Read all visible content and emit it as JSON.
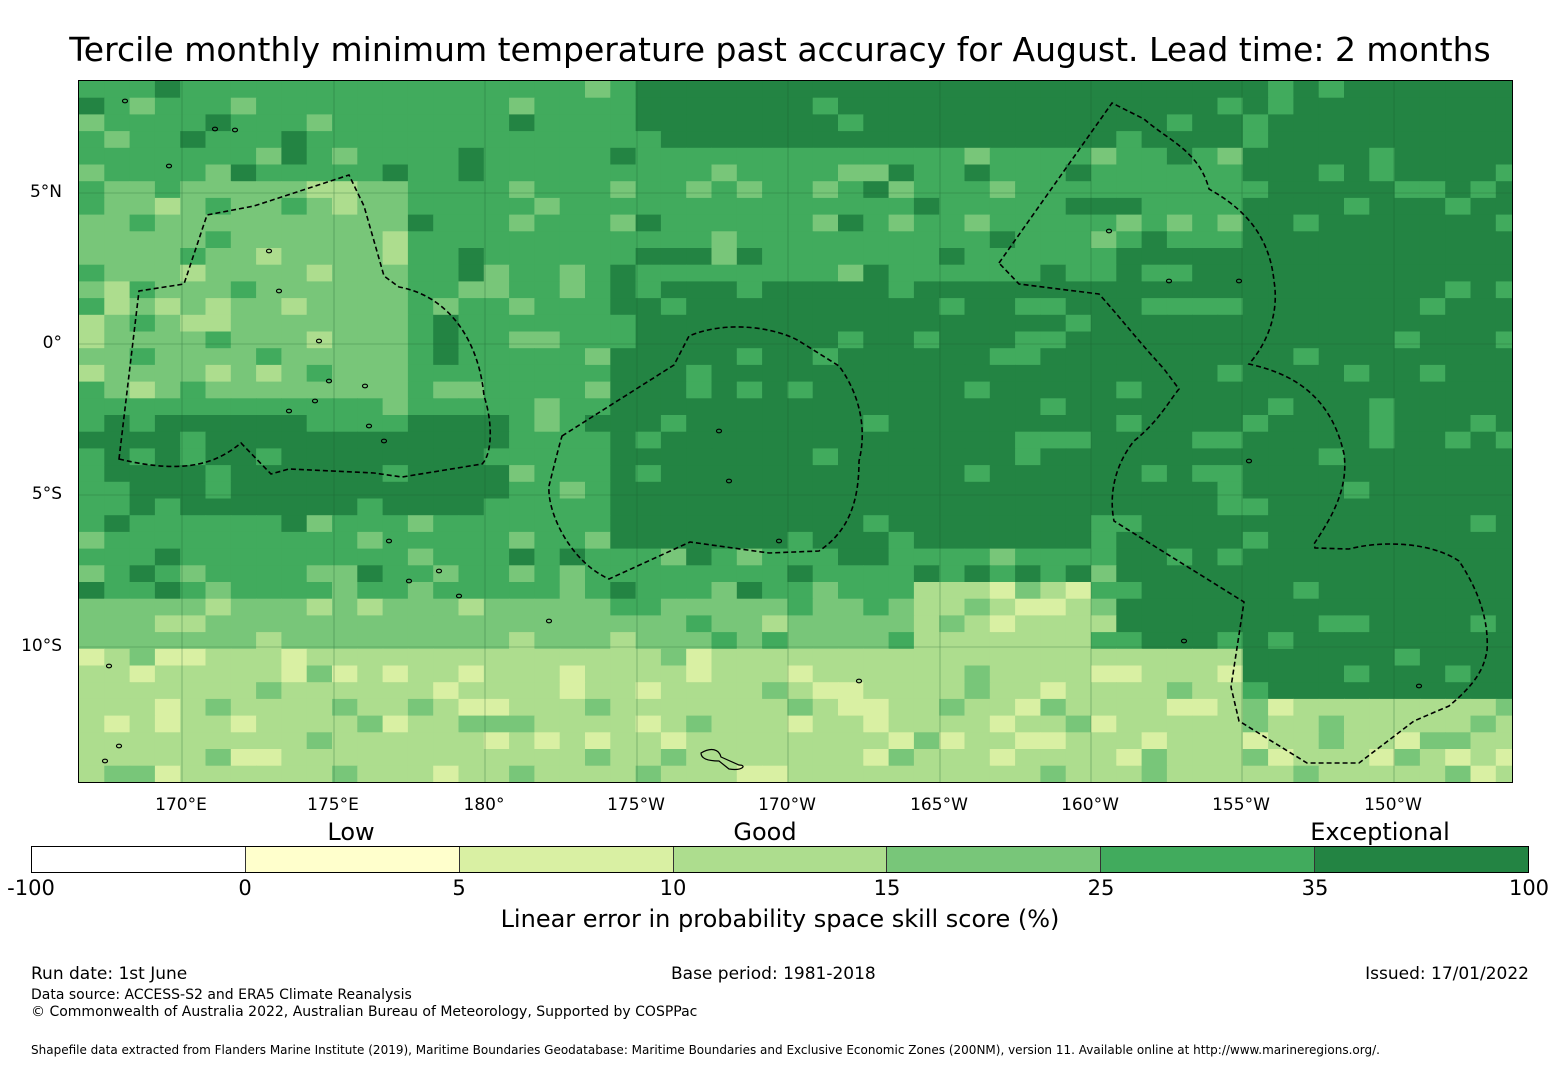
{
  "title": "Tercile monthly minimum temperature past accuracy for August. Lead time: 2 months",
  "map": {
    "lon_labels": [
      "170°E",
      "175°E",
      "180°",
      "175°W",
      "170°W",
      "165°W",
      "160°W",
      "155°W",
      "150°W"
    ],
    "lat_labels": [
      "5°N",
      "0°",
      "5°S",
      "10°S"
    ],
    "grid_color": "#1a5c2e",
    "category_labels": [
      "Low",
      "Good",
      "Exceptional"
    ]
  },
  "colorbar": {
    "ticks": [
      "-100",
      "0",
      "5",
      "10",
      "15",
      "25",
      "35",
      "100"
    ],
    "colors": [
      "#ffffff",
      "#ffffcc",
      "#d9f0a3",
      "#addd8e",
      "#78c679",
      "#41ab5d",
      "#238443"
    ],
    "label": "Linear error in probability space skill score (%)"
  },
  "footer": {
    "run_date": "Run date: 1st June",
    "base_period": "Base period: 1981-2018",
    "issued": "Issued: 17/01/2022",
    "data_source": "Data source: ACCESS-S2 and ERA5 Climate Reanalysis",
    "copyright": "© Commonwealth of Australia 2022, Australian Bureau of Meteorology, Supported by COSPPac",
    "shapefile": "Shapefile data extracted from Flanders Marine Institute (2019), Maritime Boundaries Geodatabase: Maritime Boundaries and Exclusive Economic Zones (200NM), version 11. Available online at http://www.marineregions.org/."
  }
}
